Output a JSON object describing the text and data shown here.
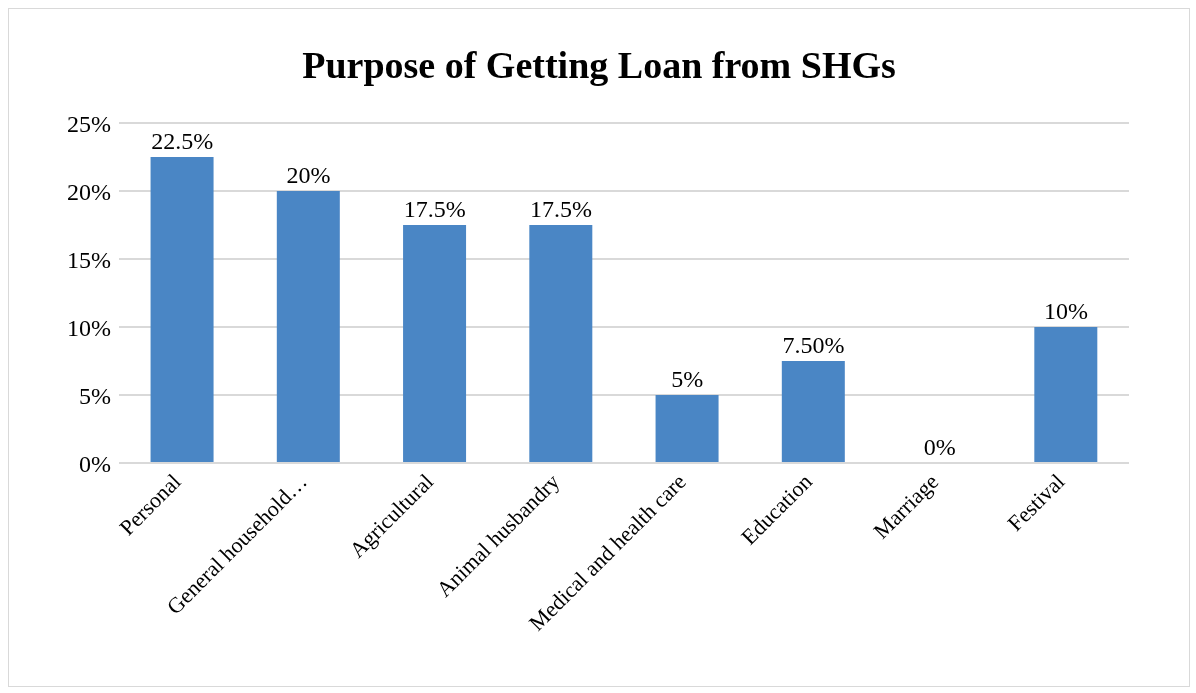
{
  "chart_data": {
    "type": "bar",
    "title": "Purpose of Getting Loan from SHGs",
    "categories": [
      "Personal",
      "General household…",
      "Agricultural",
      "Animal husbandry",
      "Medical and health care",
      "Education",
      "Marriage",
      "Festival"
    ],
    "values": [
      22.5,
      20,
      17.5,
      17.5,
      5,
      7.5,
      0,
      10
    ],
    "value_labels": [
      "22.5%",
      "20%",
      "17.5%",
      "17.5%",
      "5%",
      "7.50%",
      "0%",
      "10%"
    ],
    "color": "#4a86c5",
    "ylim": [
      0,
      25
    ],
    "yticks": [
      {
        "value": 0,
        "label": "0%"
      },
      {
        "value": 5,
        "label": "5%"
      },
      {
        "value": 10,
        "label": "10%"
      },
      {
        "value": 15,
        "label": "15%"
      },
      {
        "value": 20,
        "label": "20%"
      },
      {
        "value": 25,
        "label": "25%"
      }
    ],
    "grid": "y"
  }
}
